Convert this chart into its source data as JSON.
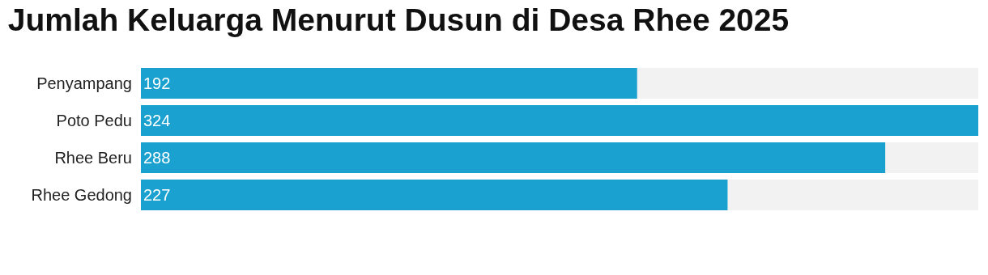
{
  "chart_data": {
    "type": "bar",
    "orientation": "horizontal",
    "title": "Jumlah Keluarga Menurut Dusun di Desa Rhee 2025",
    "categories": [
      "Penyampang",
      "Poto Pedu",
      "Rhee Beru",
      "Rhee Gedong"
    ],
    "values": [
      192,
      324,
      288,
      227
    ],
    "color": "#1aa1cf",
    "xlim": [
      0,
      324
    ],
    "data_labels": true,
    "tick_labels": "y"
  }
}
